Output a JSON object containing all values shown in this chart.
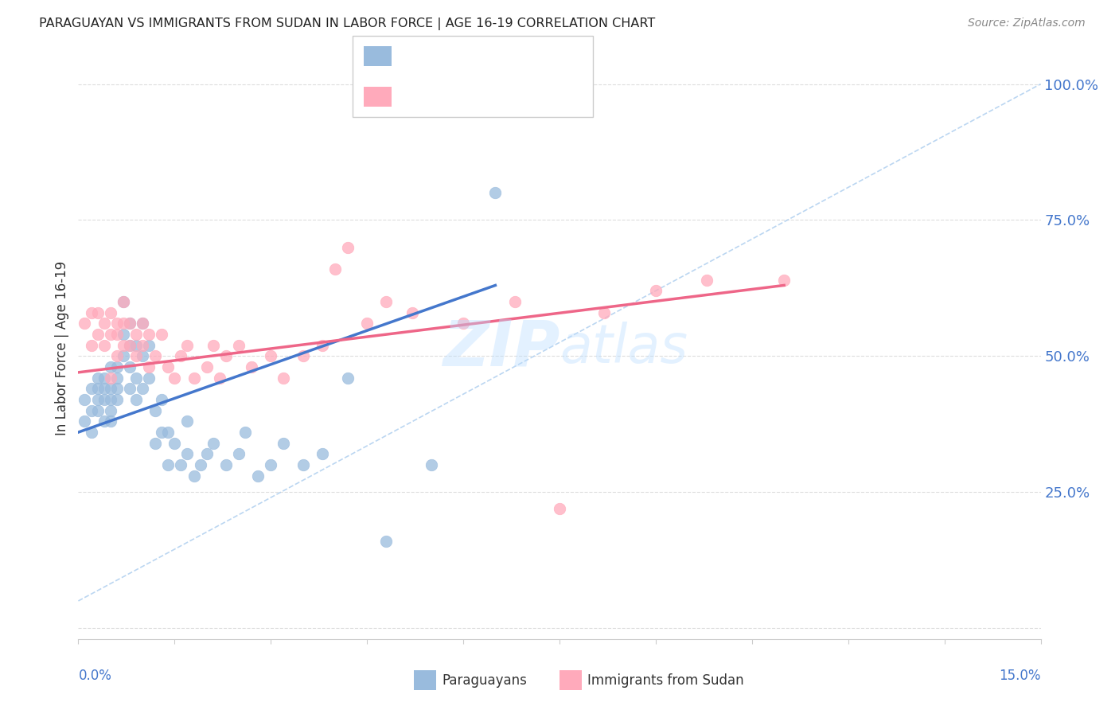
{
  "title": "PARAGUAYAN VS IMMIGRANTS FROM SUDAN IN LABOR FORCE | AGE 16-19 CORRELATION CHART",
  "source": "Source: ZipAtlas.com",
  "ylabel": "In Labor Force | Age 16-19",
  "xlim": [
    0.0,
    0.15
  ],
  "ylim": [
    -0.02,
    1.05
  ],
  "ytick_vals": [
    0.0,
    0.25,
    0.5,
    0.75,
    1.0
  ],
  "ytick_labels_right": [
    "",
    "25.0%",
    "50.0%",
    "75.0%",
    "100.0%"
  ],
  "blue_scatter_color": "#99BBDD",
  "pink_scatter_color": "#FFAABB",
  "blue_line_color": "#4477CC",
  "pink_line_color": "#EE6688",
  "dash_line_color": "#AACCEE",
  "grid_color": "#DDDDDD",
  "watermark_color": "#BBDDFF",
  "background_color": "#FFFFFF",
  "blue_scatter_x": [
    0.001,
    0.001,
    0.002,
    0.002,
    0.002,
    0.003,
    0.003,
    0.003,
    0.003,
    0.004,
    0.004,
    0.004,
    0.004,
    0.005,
    0.005,
    0.005,
    0.005,
    0.005,
    0.006,
    0.006,
    0.006,
    0.006,
    0.007,
    0.007,
    0.007,
    0.008,
    0.008,
    0.008,
    0.008,
    0.009,
    0.009,
    0.009,
    0.01,
    0.01,
    0.01,
    0.011,
    0.011,
    0.012,
    0.012,
    0.013,
    0.013,
    0.014,
    0.014,
    0.015,
    0.016,
    0.017,
    0.017,
    0.018,
    0.019,
    0.02,
    0.021,
    0.023,
    0.025,
    0.026,
    0.028,
    0.03,
    0.032,
    0.035,
    0.038,
    0.042,
    0.048,
    0.055,
    0.065
  ],
  "blue_scatter_y": [
    0.42,
    0.38,
    0.4,
    0.44,
    0.36,
    0.42,
    0.46,
    0.4,
    0.44,
    0.42,
    0.46,
    0.38,
    0.44,
    0.42,
    0.48,
    0.4,
    0.44,
    0.38,
    0.44,
    0.48,
    0.42,
    0.46,
    0.5,
    0.54,
    0.6,
    0.44,
    0.48,
    0.52,
    0.56,
    0.42,
    0.46,
    0.52,
    0.44,
    0.5,
    0.56,
    0.46,
    0.52,
    0.34,
    0.4,
    0.36,
    0.42,
    0.3,
    0.36,
    0.34,
    0.3,
    0.32,
    0.38,
    0.28,
    0.3,
    0.32,
    0.34,
    0.3,
    0.32,
    0.36,
    0.28,
    0.3,
    0.34,
    0.3,
    0.32,
    0.46,
    0.16,
    0.3,
    0.8
  ],
  "pink_scatter_x": [
    0.001,
    0.002,
    0.002,
    0.003,
    0.003,
    0.004,
    0.004,
    0.005,
    0.005,
    0.005,
    0.006,
    0.006,
    0.006,
    0.007,
    0.007,
    0.007,
    0.008,
    0.008,
    0.009,
    0.009,
    0.01,
    0.01,
    0.011,
    0.011,
    0.012,
    0.013,
    0.014,
    0.015,
    0.016,
    0.017,
    0.018,
    0.02,
    0.021,
    0.022,
    0.023,
    0.025,
    0.027,
    0.03,
    0.032,
    0.035,
    0.038,
    0.04,
    0.042,
    0.045,
    0.048,
    0.052,
    0.06,
    0.068,
    0.075,
    0.082,
    0.09,
    0.098,
    0.11
  ],
  "pink_scatter_y": [
    0.56,
    0.52,
    0.58,
    0.54,
    0.58,
    0.52,
    0.56,
    0.46,
    0.54,
    0.58,
    0.5,
    0.54,
    0.56,
    0.52,
    0.56,
    0.6,
    0.52,
    0.56,
    0.5,
    0.54,
    0.52,
    0.56,
    0.48,
    0.54,
    0.5,
    0.54,
    0.48,
    0.46,
    0.5,
    0.52,
    0.46,
    0.48,
    0.52,
    0.46,
    0.5,
    0.52,
    0.48,
    0.5,
    0.46,
    0.5,
    0.52,
    0.66,
    0.7,
    0.56,
    0.6,
    0.58,
    0.56,
    0.6,
    0.22,
    0.58,
    0.62,
    0.64,
    0.64
  ],
  "blue_line_x0": 0.0,
  "blue_line_y0": 0.36,
  "blue_line_x1": 0.065,
  "blue_line_y1": 0.63,
  "pink_line_x0": 0.0,
  "pink_line_y0": 0.47,
  "pink_line_x1": 0.11,
  "pink_line_y1": 0.63
}
